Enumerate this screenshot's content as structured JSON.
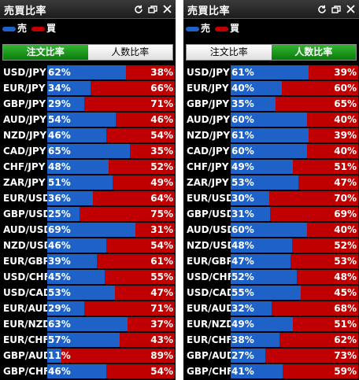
{
  "colors": {
    "sell": "#1e62c8",
    "buy": "#c00000",
    "tab_active": "#1a9a1a"
  },
  "panels": [
    {
      "title": "売買比率",
      "legend": {
        "sell": "売",
        "buy": "買"
      },
      "tabs": [
        {
          "label": "注文比率",
          "active": true
        },
        {
          "label": "人数比率",
          "active": false
        }
      ],
      "rows": [
        {
          "pair": "USD/JPY",
          "sell": "62%",
          "buy": "38%",
          "sell_ratio": 0.62
        },
        {
          "pair": "EUR/JPY",
          "sell": "34%",
          "buy": "66%",
          "sell_ratio": 0.34
        },
        {
          "pair": "GBP/JPY",
          "sell": "29%",
          "buy": "71%",
          "sell_ratio": 0.29
        },
        {
          "pair": "AUD/JPY",
          "sell": "54%",
          "buy": "46%",
          "sell_ratio": 0.54
        },
        {
          "pair": "NZD/JPY",
          "sell": "46%",
          "buy": "54%",
          "sell_ratio": 0.46
        },
        {
          "pair": "CAD/JPY",
          "sell": "65%",
          "buy": "35%",
          "sell_ratio": 0.65
        },
        {
          "pair": "CHF/JPY",
          "sell": "48%",
          "buy": "52%",
          "sell_ratio": 0.48
        },
        {
          "pair": "ZAR/JPY",
          "sell": "51%",
          "buy": "49%",
          "sell_ratio": 0.51
        },
        {
          "pair": "EUR/USD",
          "sell": "36%",
          "buy": "64%",
          "sell_ratio": 0.36
        },
        {
          "pair": "GBP/USD",
          "sell": "25%",
          "buy": "75%",
          "sell_ratio": 0.25
        },
        {
          "pair": "AUD/USD",
          "sell": "69%",
          "buy": "31%",
          "sell_ratio": 0.69
        },
        {
          "pair": "NZD/USD",
          "sell": "46%",
          "buy": "54%",
          "sell_ratio": 0.46
        },
        {
          "pair": "EUR/GBP",
          "sell": "39%",
          "buy": "61%",
          "sell_ratio": 0.39
        },
        {
          "pair": "USD/CHF",
          "sell": "45%",
          "buy": "55%",
          "sell_ratio": 0.45
        },
        {
          "pair": "USD/CAD",
          "sell": "53%",
          "buy": "47%",
          "sell_ratio": 0.53
        },
        {
          "pair": "EUR/AUD",
          "sell": "29%",
          "buy": "71%",
          "sell_ratio": 0.29
        },
        {
          "pair": "EUR/NZD",
          "sell": "63%",
          "buy": "37%",
          "sell_ratio": 0.63
        },
        {
          "pair": "EUR/CHF",
          "sell": "57%",
          "buy": "43%",
          "sell_ratio": 0.57
        },
        {
          "pair": "GBP/AUD",
          "sell": "11%",
          "buy": "89%",
          "sell_ratio": 0.11
        },
        {
          "pair": "GBP/CHF",
          "sell": "46%",
          "buy": "54%",
          "sell_ratio": 0.46
        }
      ]
    },
    {
      "title": "売買比率",
      "legend": {
        "sell": "売",
        "buy": "買"
      },
      "tabs": [
        {
          "label": "注文比率",
          "active": false
        },
        {
          "label": "人数比率",
          "active": true
        }
      ],
      "rows": [
        {
          "pair": "USD/JPY",
          "sell": "61%",
          "buy": "39%",
          "sell_ratio": 0.61
        },
        {
          "pair": "EUR/JPY",
          "sell": "40%",
          "buy": "60%",
          "sell_ratio": 0.4
        },
        {
          "pair": "GBP/JPY",
          "sell": "35%",
          "buy": "65%",
          "sell_ratio": 0.35
        },
        {
          "pair": "AUD/JPY",
          "sell": "60%",
          "buy": "40%",
          "sell_ratio": 0.6
        },
        {
          "pair": "NZD/JPY",
          "sell": "61%",
          "buy": "39%",
          "sell_ratio": 0.61
        },
        {
          "pair": "CAD/JPY",
          "sell": "60%",
          "buy": "40%",
          "sell_ratio": 0.6
        },
        {
          "pair": "CHF/JPY",
          "sell": "49%",
          "buy": "51%",
          "sell_ratio": 0.49
        },
        {
          "pair": "ZAR/JPY",
          "sell": "53%",
          "buy": "47%",
          "sell_ratio": 0.53
        },
        {
          "pair": "EUR/USD",
          "sell": "30%",
          "buy": "70%",
          "sell_ratio": 0.3
        },
        {
          "pair": "GBP/USD",
          "sell": "31%",
          "buy": "69%",
          "sell_ratio": 0.31
        },
        {
          "pair": "AUD/USD",
          "sell": "60%",
          "buy": "40%",
          "sell_ratio": 0.6
        },
        {
          "pair": "NZD/USD",
          "sell": "48%",
          "buy": "52%",
          "sell_ratio": 0.48
        },
        {
          "pair": "EUR/GBP",
          "sell": "47%",
          "buy": "53%",
          "sell_ratio": 0.47
        },
        {
          "pair": "USD/CHF",
          "sell": "52%",
          "buy": "48%",
          "sell_ratio": 0.52
        },
        {
          "pair": "USD/CAD",
          "sell": "55%",
          "buy": "45%",
          "sell_ratio": 0.55
        },
        {
          "pair": "EUR/AUD",
          "sell": "32%",
          "buy": "68%",
          "sell_ratio": 0.32
        },
        {
          "pair": "EUR/NZD",
          "sell": "49%",
          "buy": "51%",
          "sell_ratio": 0.49
        },
        {
          "pair": "EUR/CHF",
          "sell": "38%",
          "buy": "62%",
          "sell_ratio": 0.38
        },
        {
          "pair": "GBP/AUD",
          "sell": "27%",
          "buy": "73%",
          "sell_ratio": 0.27
        },
        {
          "pair": "GBP/CHF",
          "sell": "41%",
          "buy": "59%",
          "sell_ratio": 0.41
        }
      ]
    }
  ]
}
